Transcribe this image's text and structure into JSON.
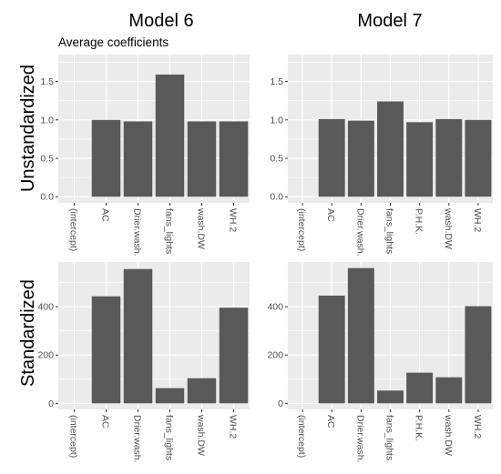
{
  "columns": [
    "Model 6",
    "Model 7"
  ],
  "rows": [
    "Unstandardized",
    "Standardized"
  ],
  "subtitle": "Average coefficients",
  "colors": {
    "panel_bg": "#ebebeb",
    "grid": "#ffffff",
    "bar": "#595959",
    "tick_text": "#4d4d4d"
  },
  "chart_data": [
    {
      "type": "bar",
      "model": "Model 6",
      "scaling": "Unstandardized",
      "categories": [
        "(intercept)",
        "AC",
        "Drier.wash.",
        "fans_lights",
        "wash.DW",
        "WH.2"
      ],
      "values": [
        0.0,
        1.0,
        0.98,
        1.59,
        0.98,
        0.98
      ],
      "ylim": [
        -0.08,
        1.85
      ],
      "yticks": [
        0.0,
        0.5,
        1.0,
        1.5
      ],
      "ytick_labels": [
        "0.0",
        "0.5",
        "1.0",
        "1.5"
      ]
    },
    {
      "type": "bar",
      "model": "Model 7",
      "scaling": "Unstandardized",
      "categories": [
        "(intercept)",
        "AC",
        "Drier.wash.",
        "fans_lights",
        "P.H.K.",
        "wash.DW",
        "WH.2"
      ],
      "values": [
        0.0,
        1.01,
        0.99,
        1.24,
        0.97,
        1.01,
        1.0
      ],
      "ylim": [
        -0.08,
        1.85
      ],
      "yticks": [
        0.0,
        0.5,
        1.0,
        1.5
      ],
      "ytick_labels": [
        "0.0",
        "0.5",
        "1.0",
        "1.5"
      ]
    },
    {
      "type": "bar",
      "model": "Model 6",
      "scaling": "Standardized",
      "categories": [
        "(intercept)",
        "AC",
        "Drier.wash.",
        "fans_lights",
        "wash.DW",
        "WH.2"
      ],
      "values": [
        0,
        443,
        556,
        63,
        104,
        396
      ],
      "ylim": [
        -25,
        585
      ],
      "yticks": [
        0,
        200,
        400
      ],
      "ytick_labels": [
        "0",
        "200",
        "400"
      ]
    },
    {
      "type": "bar",
      "model": "Model 7",
      "scaling": "Standardized",
      "categories": [
        "(intercept)",
        "AC",
        "Drier.wash.",
        "fans_lights",
        "P.H.K.",
        "wash.DW",
        "WH.2"
      ],
      "values": [
        0,
        446,
        560,
        53,
        127,
        108,
        402
      ],
      "ylim": [
        -25,
        585
      ],
      "yticks": [
        0,
        200,
        400
      ],
      "ytick_labels": [
        "0",
        "200",
        "400"
      ]
    }
  ]
}
